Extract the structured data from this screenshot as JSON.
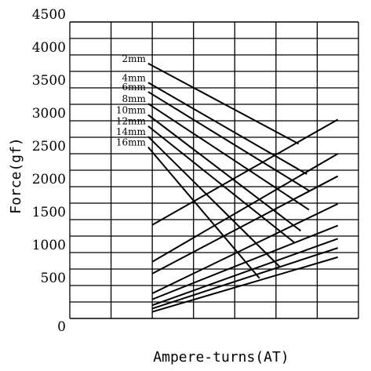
{
  "chart_data": {
    "type": "line",
    "xlabel": "Ampere-turns(AT)",
    "ylabel": "Force(gf)",
    "ylim": [
      0,
      4500
    ],
    "xlim": [
      0,
      7
    ],
    "xtick_labels": [],
    "ytick_labels": [
      "0",
      "500",
      "1000",
      "1500",
      "2000",
      "2500",
      "3000",
      "3500",
      "4000",
      "4500"
    ],
    "grid": true,
    "decreasing_series": [
      {
        "name": "2mm",
        "points": [
          [
            1.9,
            3870
          ],
          [
            5.55,
            2650
          ]
        ]
      },
      {
        "name": "4mm",
        "points": [
          [
            1.9,
            3580
          ],
          [
            5.75,
            2190
          ]
        ]
      },
      {
        "name": "6mm",
        "points": [
          [
            1.9,
            3440
          ],
          [
            5.8,
            1940
          ]
        ]
      },
      {
        "name": "8mm",
        "points": [
          [
            1.9,
            3260
          ],
          [
            5.8,
            1650
          ]
        ]
      },
      {
        "name": "10mm",
        "points": [
          [
            1.9,
            3090
          ],
          [
            5.6,
            1330
          ]
        ]
      },
      {
        "name": "12mm",
        "points": [
          [
            1.9,
            2920
          ],
          [
            5.45,
            1150
          ]
        ]
      },
      {
        "name": "14mm",
        "points": [
          [
            1.9,
            2760
          ],
          [
            5.1,
            780
          ]
        ]
      },
      {
        "name": "16mm",
        "points": [
          [
            1.9,
            2600
          ],
          [
            4.6,
            610
          ]
        ]
      }
    ],
    "increasing_series": [
      {
        "points": [
          [
            2.0,
            1420
          ],
          [
            6.5,
            3020
          ]
        ]
      },
      {
        "points": [
          [
            2.0,
            860
          ],
          [
            6.5,
            2500
          ]
        ]
      },
      {
        "points": [
          [
            2.0,
            680
          ],
          [
            6.5,
            2160
          ]
        ]
      },
      {
        "points": [
          [
            2.0,
            380
          ],
          [
            6.5,
            1740
          ]
        ]
      },
      {
        "points": [
          [
            2.0,
            290
          ],
          [
            6.5,
            1410
          ]
        ]
      },
      {
        "points": [
          [
            2.0,
            200
          ],
          [
            6.5,
            1210
          ]
        ]
      },
      {
        "points": [
          [
            2.0,
            150
          ],
          [
            6.5,
            1070
          ]
        ]
      },
      {
        "points": [
          [
            2.0,
            100
          ],
          [
            6.5,
            930
          ]
        ]
      }
    ]
  }
}
